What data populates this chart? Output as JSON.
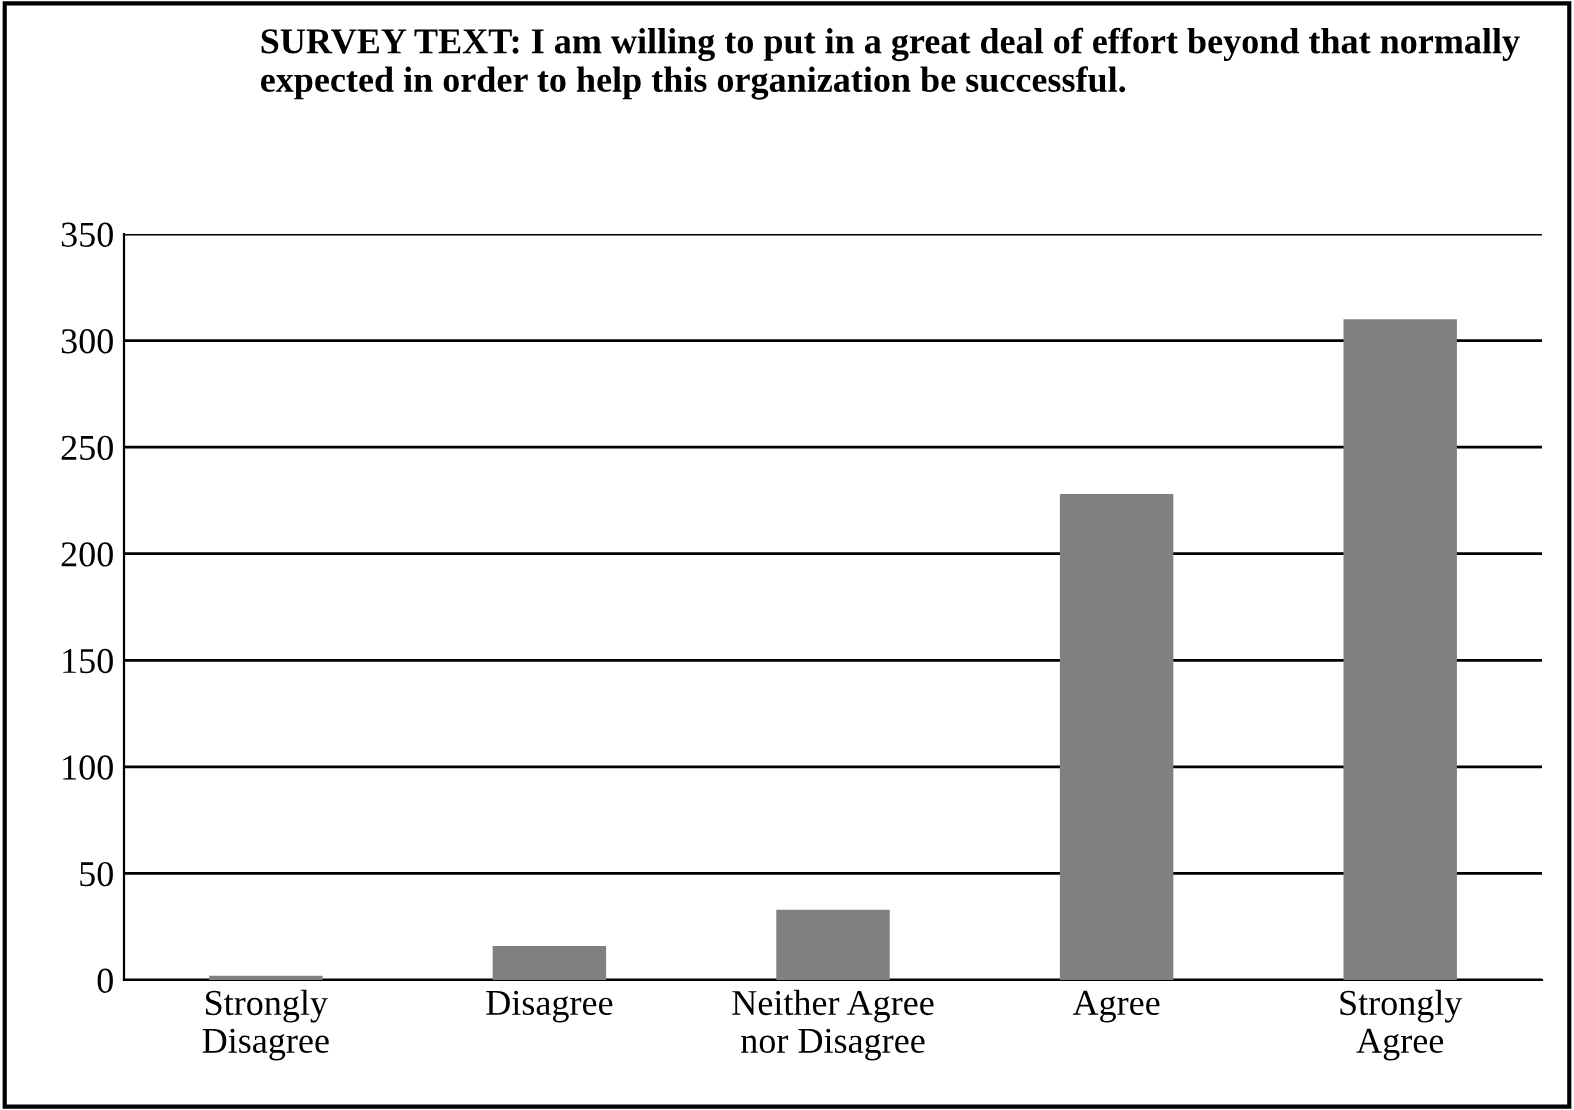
{
  "chart_data": {
    "type": "bar",
    "title": "SURVEY TEXT: I am willing to put in a great deal of effort beyond that normally expected in order to help this organization be successful.",
    "categories": [
      "Strongly\nDisagree",
      "Disagree",
      "Neither Agree\nnor Disagree",
      "Agree",
      "Strongly\nAgree"
    ],
    "values": [
      2,
      16,
      33,
      228,
      310
    ],
    "color": "#808080",
    "ylim": [
      0,
      350
    ],
    "yticks": [
      0,
      50,
      100,
      150,
      200,
      250,
      300,
      350
    ],
    "grid": "y",
    "legend": false
  }
}
